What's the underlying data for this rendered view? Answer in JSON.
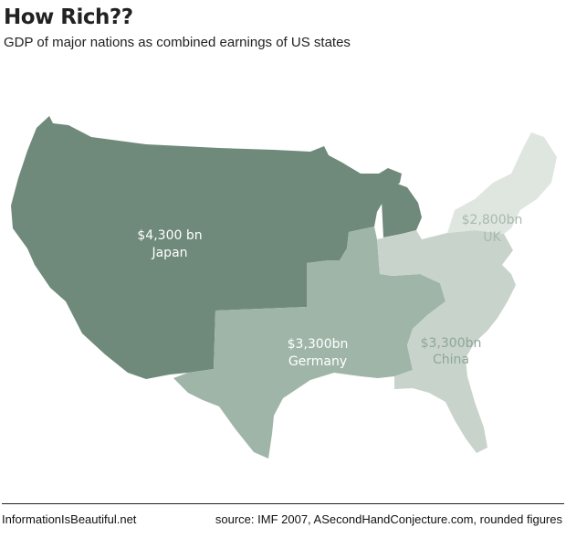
{
  "header": {
    "title": "How Rich??",
    "subtitle": "GDP of major nations as combined earnings of US states"
  },
  "regions": {
    "japan": {
      "value": "$4,300 bn",
      "country": "Japan",
      "color": "#6f8a7a"
    },
    "germany": {
      "value": "$3,300bn",
      "country": "Germany",
      "color": "#9fb5a8"
    },
    "china": {
      "value": "$3,300bn",
      "country": "China",
      "color": "#c8d4cb"
    },
    "uk": {
      "value": "$2,800bn",
      "country": "UK",
      "color": "#dfe6e0"
    }
  },
  "footer": {
    "brand": "InformationIsBeautiful.net",
    "source": "source: IMF 2007, ASecondHandConjecture.com, rounded figures"
  }
}
